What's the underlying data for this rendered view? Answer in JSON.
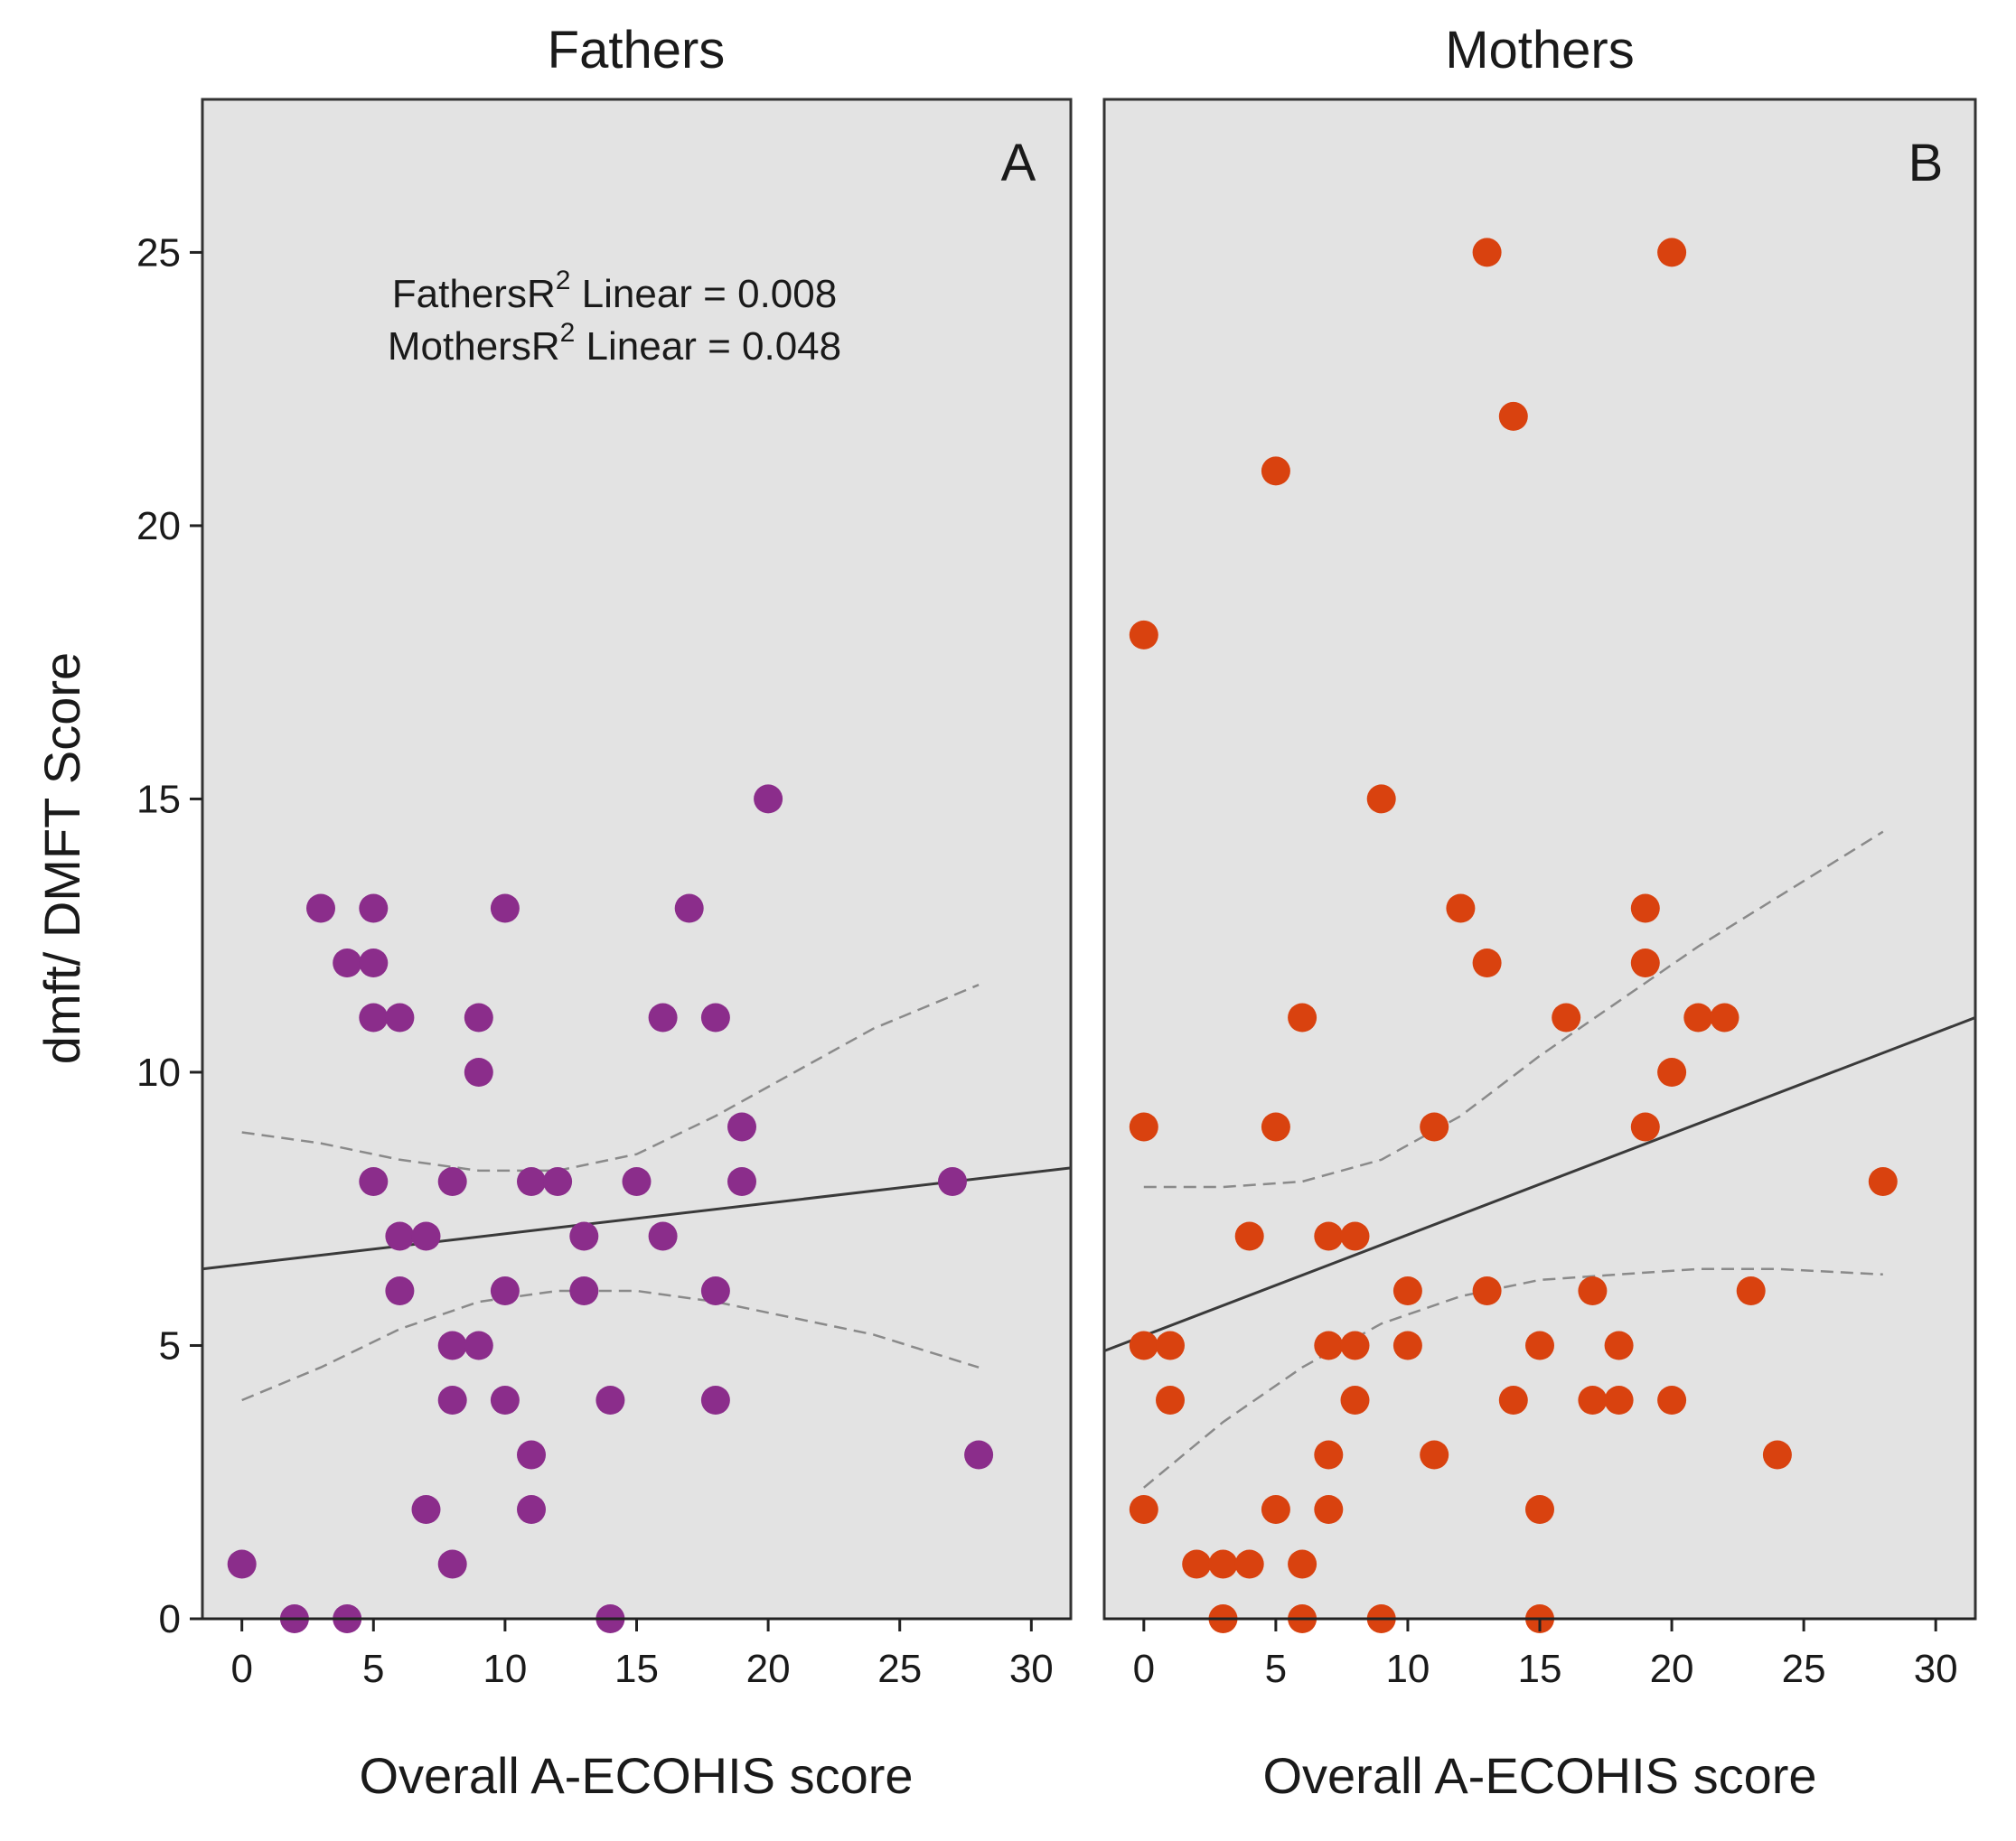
{
  "chart_data": [
    {
      "type": "scatter",
      "panel_title": "Fathers",
      "panel_letter": "A",
      "xlabel": "Overall A-ECOHIS score",
      "ylabel": "dmft/ DMFT Score",
      "xlim": [
        -1.5,
        31.5
      ],
      "ylim": [
        0,
        27.8
      ],
      "xticks": [
        0,
        5,
        10,
        15,
        20,
        25,
        30
      ],
      "yticks": [
        0,
        5,
        10,
        15,
        20,
        25
      ],
      "point_color": "#8b2d8b",
      "legend": {
        "line1_prefix": "Fathers",
        "line1_suffix": " Linear = 0.008",
        "line2_prefix": "Mothers",
        "line2_suffix": " Linear = 0.048",
        "r_label": "R",
        "superscript": "2"
      },
      "points": [
        [
          0,
          1
        ],
        [
          2,
          0
        ],
        [
          4,
          0
        ],
        [
          3,
          13
        ],
        [
          4,
          12
        ],
        [
          5,
          13
        ],
        [
          5,
          12
        ],
        [
          5,
          11
        ],
        [
          6,
          11
        ],
        [
          5,
          8
        ],
        [
          6,
          7
        ],
        [
          7,
          7
        ],
        [
          6,
          6
        ],
        [
          7,
          2
        ],
        [
          8,
          8
        ],
        [
          8,
          5
        ],
        [
          9,
          5
        ],
        [
          8,
          4
        ],
        [
          8,
          1
        ],
        [
          9,
          11
        ],
        [
          9,
          10
        ],
        [
          10,
          13
        ],
        [
          10,
          6
        ],
        [
          10,
          4
        ],
        [
          11,
          8
        ],
        [
          12,
          8
        ],
        [
          11,
          3
        ],
        [
          11,
          2
        ],
        [
          13,
          7
        ],
        [
          13,
          6
        ],
        [
          14,
          4
        ],
        [
          14,
          0
        ],
        [
          15,
          8
        ],
        [
          16,
          11
        ],
        [
          16,
          7
        ],
        [
          17,
          13
        ],
        [
          18,
          11
        ],
        [
          18,
          6
        ],
        [
          18,
          4
        ],
        [
          19,
          9
        ],
        [
          19,
          8
        ],
        [
          20,
          15
        ],
        [
          27,
          8
        ],
        [
          28,
          3
        ]
      ],
      "fit_line": {
        "x": [
          -1.5,
          31.5
        ],
        "y": [
          6.4,
          8.25
        ]
      },
      "ci_upper": {
        "x": [
          0,
          3,
          6,
          9,
          12,
          15,
          18,
          21,
          24,
          28
        ],
        "y": [
          8.9,
          8.7,
          8.4,
          8.2,
          8.2,
          8.5,
          9.2,
          10.0,
          10.8,
          11.6
        ]
      },
      "ci_lower": {
        "x": [
          0,
          3,
          6,
          9,
          12,
          15,
          18,
          21,
          24,
          28
        ],
        "y": [
          4.0,
          4.6,
          5.3,
          5.8,
          6.0,
          6.0,
          5.8,
          5.5,
          5.2,
          4.6
        ]
      }
    },
    {
      "type": "scatter",
      "panel_title": "Mothers",
      "panel_letter": "B",
      "xlabel": "Overall A-ECOHIS score",
      "ylabel": "",
      "xlim": [
        -1.5,
        31.5
      ],
      "ylim": [
        0,
        27.8
      ],
      "xticks": [
        0,
        5,
        10,
        15,
        20,
        25,
        30
      ],
      "yticks": [],
      "point_color": "#d9420f",
      "points": [
        [
          0,
          18
        ],
        [
          0,
          9
        ],
        [
          0,
          5
        ],
        [
          1,
          5
        ],
        [
          1,
          4
        ],
        [
          0,
          2
        ],
        [
          2,
          1
        ],
        [
          3,
          1
        ],
        [
          4,
          1
        ],
        [
          3,
          0
        ],
        [
          4,
          7
        ],
        [
          5,
          21
        ],
        [
          5,
          9
        ],
        [
          5,
          2
        ],
        [
          6,
          11
        ],
        [
          6,
          1
        ],
        [
          6,
          0
        ],
        [
          7,
          7
        ],
        [
          8,
          7
        ],
        [
          7,
          5
        ],
        [
          8,
          5
        ],
        [
          8,
          4
        ],
        [
          7,
          3
        ],
        [
          7,
          2
        ],
        [
          9,
          15
        ],
        [
          9,
          0
        ],
        [
          10,
          6
        ],
        [
          10,
          5
        ],
        [
          11,
          9
        ],
        [
          11,
          3
        ],
        [
          12,
          13
        ],
        [
          13,
          12
        ],
        [
          13,
          6
        ],
        [
          13,
          25
        ],
        [
          14,
          22
        ],
        [
          14,
          4
        ],
        [
          15,
          5
        ],
        [
          15,
          2
        ],
        [
          15,
          0
        ],
        [
          16,
          11
        ],
        [
          17,
          6
        ],
        [
          17,
          4
        ],
        [
          18,
          5
        ],
        [
          18,
          4
        ],
        [
          19,
          13
        ],
        [
          19,
          12
        ],
        [
          19,
          9
        ],
        [
          20,
          25
        ],
        [
          20,
          10
        ],
        [
          20,
          4
        ],
        [
          21,
          11
        ],
        [
          22,
          11
        ],
        [
          23,
          6
        ],
        [
          24,
          3
        ],
        [
          28,
          8
        ]
      ],
      "fit_line": {
        "x": [
          -1.5,
          31.5
        ],
        "y": [
          4.9,
          11.0
        ]
      },
      "ci_upper": {
        "x": [
          0,
          3,
          6,
          9,
          12,
          15,
          18,
          21,
          24,
          28
        ],
        "y": [
          7.9,
          7.9,
          8.0,
          8.4,
          9.2,
          10.3,
          11.3,
          12.3,
          13.2,
          14.4
        ]
      },
      "ci_lower": {
        "x": [
          0,
          3,
          6,
          9,
          12,
          15,
          18,
          21,
          24,
          28
        ],
        "y": [
          2.4,
          3.6,
          4.6,
          5.4,
          5.9,
          6.2,
          6.3,
          6.4,
          6.4,
          6.3
        ]
      }
    }
  ]
}
